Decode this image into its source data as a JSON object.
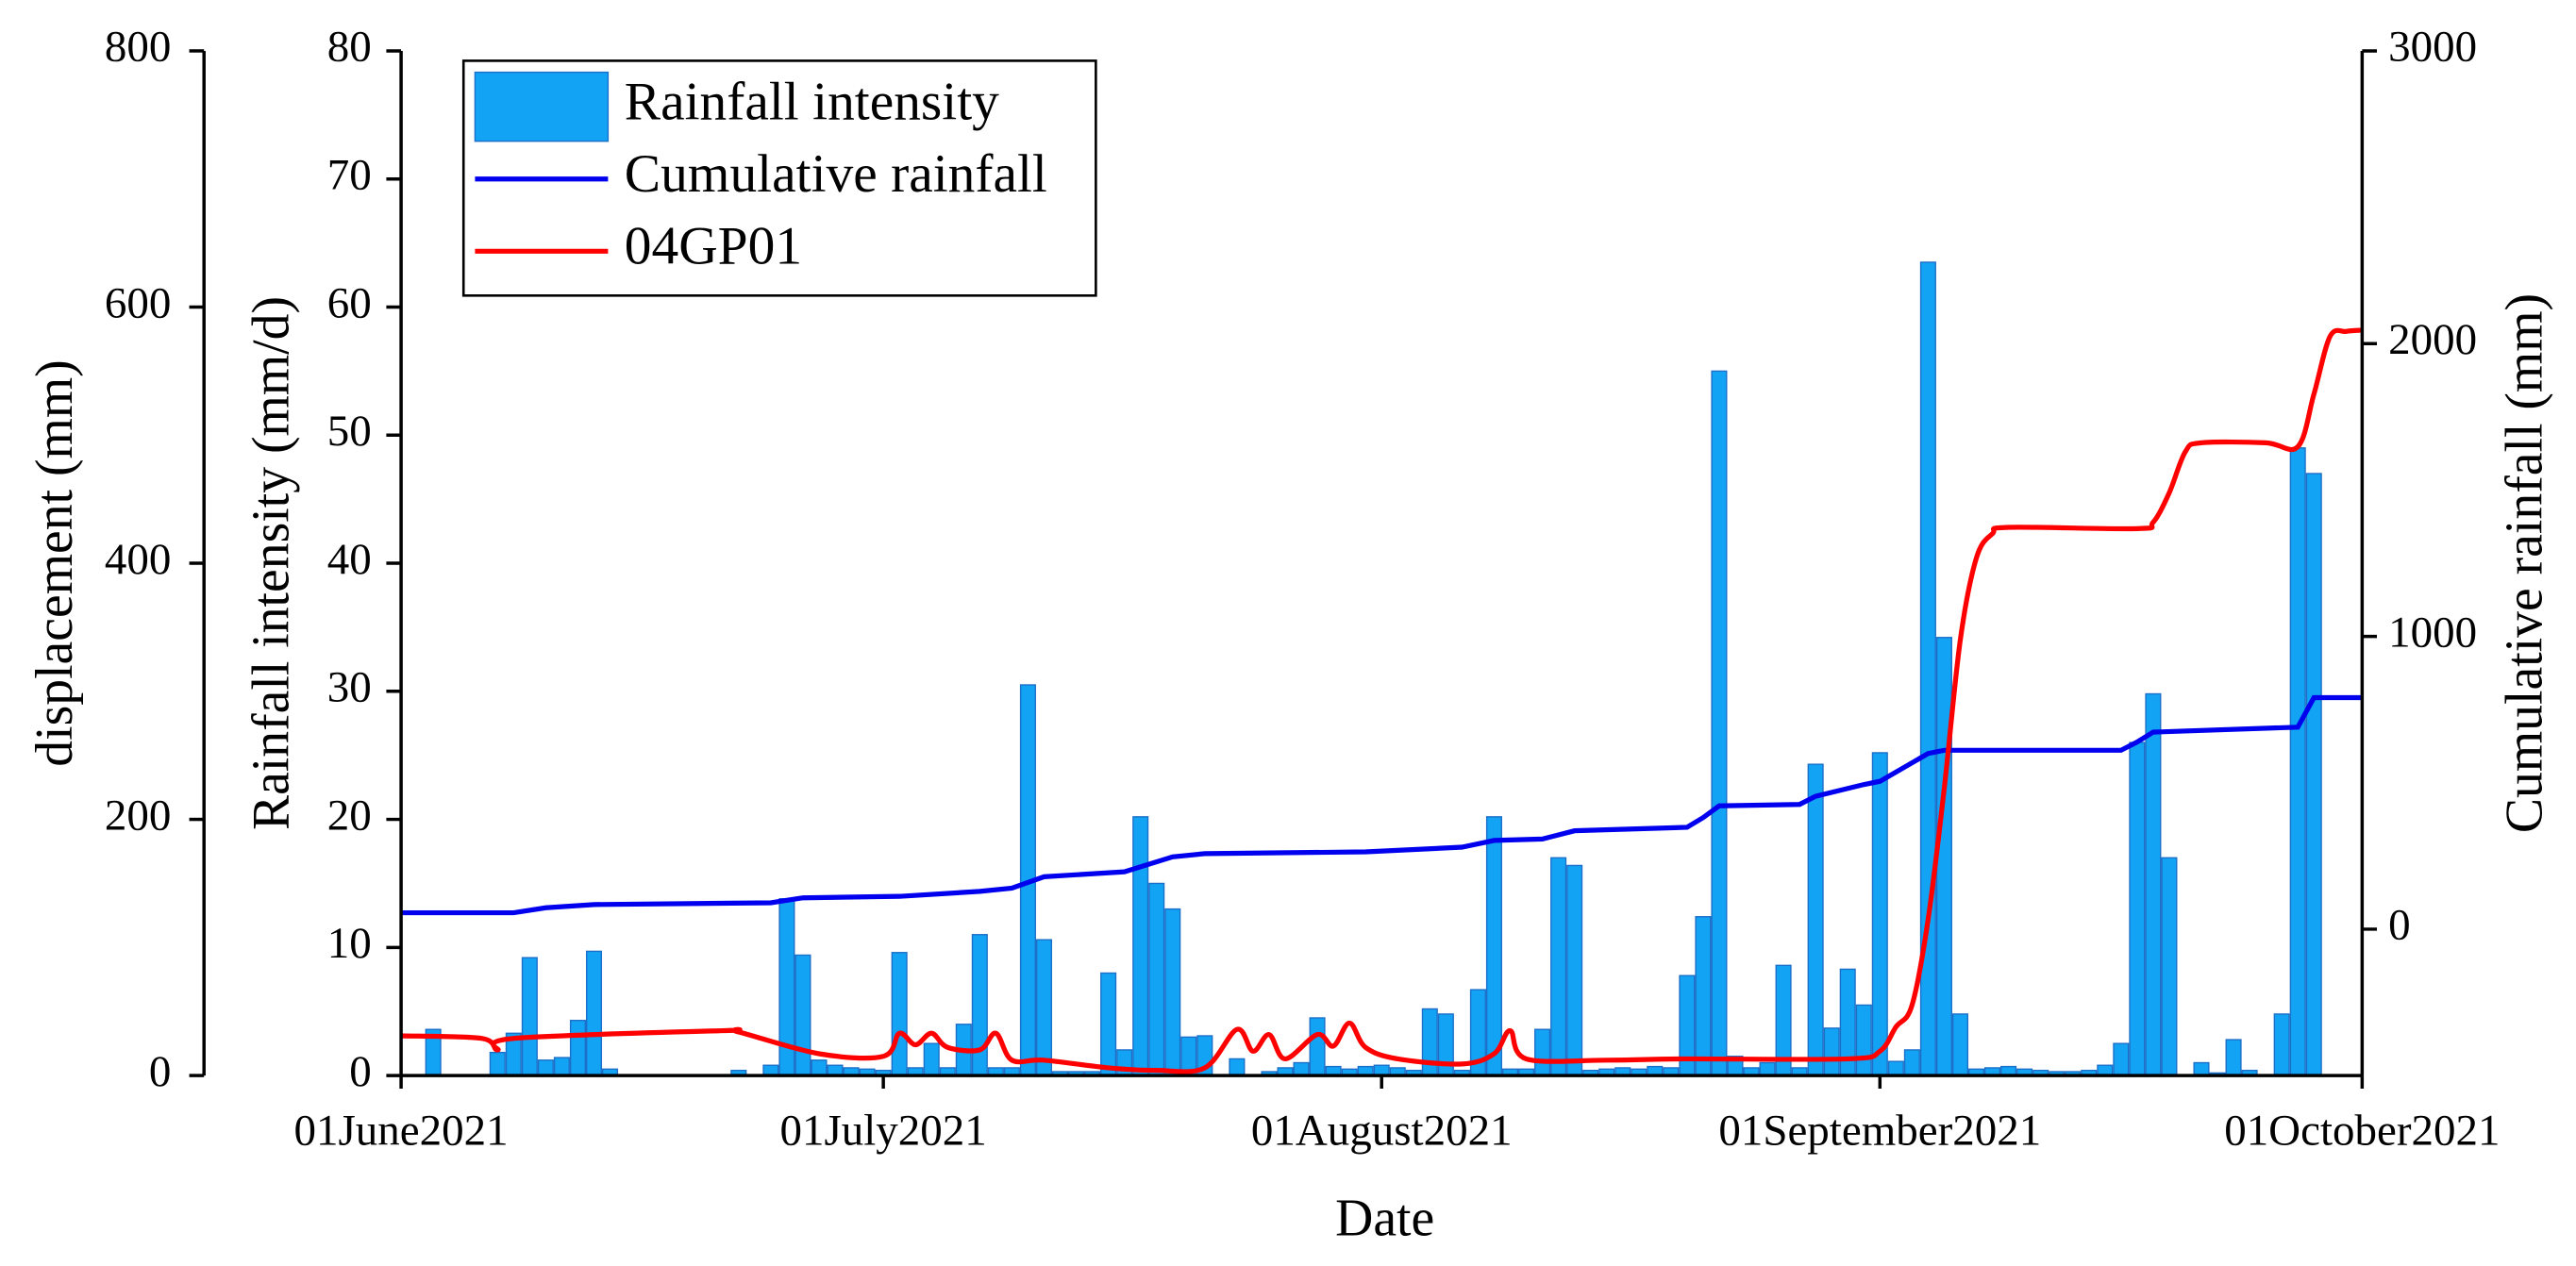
{
  "chart_data": {
    "type": "combo",
    "xlabel": "Date",
    "ylabel": "Rainfall intensity (mm/d)",
    "y2label": "Cumulative rainfall (mm)",
    "y3label": "displacement (mm)",
    "xlim": [
      "2021-06-01",
      "2021-10-01"
    ],
    "xticks": [
      {
        "value": "2021-06-01",
        "label": "01June2021"
      },
      {
        "value": "2021-07-01",
        "label": "01July2021"
      },
      {
        "value": "2021-08-01",
        "label": "01August2021"
      },
      {
        "value": "2021-09-01",
        "label": "01September2021"
      },
      {
        "value": "2021-10-01",
        "label": "01October2021"
      }
    ],
    "ylim": [
      0,
      80
    ],
    "yticks": [
      0,
      10,
      20,
      30,
      40,
      50,
      60,
      70,
      80
    ],
    "y2lim": [
      -500,
      3000
    ],
    "y2ticks": [
      0,
      1000,
      2000,
      3000
    ],
    "y3lim": [
      0,
      800
    ],
    "y3ticks": [
      0,
      200,
      400,
      600,
      800
    ],
    "legend": "upper left",
    "series": [
      {
        "name": "Rainfall intensity",
        "type": "bar",
        "axis": "y",
        "color": "#12a3f5",
        "x": [
          "2021-06-03",
          "2021-06-07",
          "2021-06-08",
          "2021-06-09",
          "2021-06-10",
          "2021-06-11",
          "2021-06-12",
          "2021-06-13",
          "2021-06-14",
          "2021-06-22",
          "2021-06-24",
          "2021-06-25",
          "2021-06-26",
          "2021-06-27",
          "2021-06-28",
          "2021-06-29",
          "2021-06-30",
          "2021-07-01",
          "2021-07-02",
          "2021-07-03",
          "2021-07-04",
          "2021-07-05",
          "2021-07-06",
          "2021-07-07",
          "2021-07-08",
          "2021-07-09",
          "2021-07-10",
          "2021-07-11",
          "2021-07-12",
          "2021-07-13",
          "2021-07-14",
          "2021-07-15",
          "2021-07-16",
          "2021-07-17",
          "2021-07-18",
          "2021-07-19",
          "2021-07-20",
          "2021-07-21",
          "2021-07-23",
          "2021-07-25",
          "2021-07-26",
          "2021-07-27",
          "2021-07-28",
          "2021-07-29",
          "2021-07-30",
          "2021-07-31",
          "2021-08-01",
          "2021-08-02",
          "2021-08-03",
          "2021-08-04",
          "2021-08-05",
          "2021-08-06",
          "2021-08-07",
          "2021-08-08",
          "2021-08-09",
          "2021-08-10",
          "2021-08-11",
          "2021-08-12",
          "2021-08-13",
          "2021-08-14",
          "2021-08-15",
          "2021-08-16",
          "2021-08-17",
          "2021-08-18",
          "2021-08-19",
          "2021-08-20",
          "2021-08-21",
          "2021-08-22",
          "2021-08-23",
          "2021-08-24",
          "2021-08-25",
          "2021-08-26",
          "2021-08-27",
          "2021-08-28",
          "2021-08-29",
          "2021-08-30",
          "2021-08-31",
          "2021-09-01",
          "2021-09-02",
          "2021-09-03",
          "2021-09-04",
          "2021-09-05",
          "2021-09-06",
          "2021-09-07",
          "2021-09-08",
          "2021-09-09",
          "2021-09-10",
          "2021-09-11",
          "2021-09-12",
          "2021-09-13",
          "2021-09-14",
          "2021-09-15",
          "2021-09-16",
          "2021-09-17",
          "2021-09-18",
          "2021-09-19",
          "2021-09-21",
          "2021-09-22",
          "2021-09-23",
          "2021-09-24",
          "2021-09-26",
          "2021-09-27",
          "2021-09-28"
        ],
        "values": [
          3.6,
          1.8,
          3.3,
          9.2,
          1.2,
          1.4,
          4.3,
          9.7,
          0.5,
          0.4,
          0.8,
          13.8,
          9.4,
          1.2,
          0.8,
          0.6,
          0.5,
          0.4,
          9.6,
          0.6,
          2.5,
          0.6,
          4,
          11,
          0.6,
          0.6,
          30.5,
          10.6,
          0.3,
          0.3,
          0.3,
          8,
          2,
          20.2,
          15,
          13,
          3,
          3.1,
          1.3,
          0.3,
          0.6,
          1,
          4.5,
          0.7,
          0.5,
          0.7,
          0.8,
          0.6,
          0.4,
          5.2,
          4.8,
          0.4,
          6.7,
          20.2,
          0.5,
          0.5,
          3.6,
          17,
          16.4,
          0.4,
          0.5,
          0.6,
          0.5,
          0.7,
          0.6,
          7.8,
          12.4,
          55,
          1.5,
          0.6,
          1,
          8.6,
          0.6,
          24.3,
          3.7,
          8.3,
          5.5,
          25.2,
          1.1,
          2,
          63.5,
          34.2,
          4.8,
          0.5,
          0.6,
          0.7,
          0.5,
          0.4,
          0.3,
          0.3,
          0.4,
          0.8,
          2.5,
          26,
          29.8,
          17,
          1,
          0.2,
          2.8,
          0.4,
          4.8,
          49,
          47
        ]
      },
      {
        "name": "Cumulative rainfall",
        "type": "line",
        "axis": "y2",
        "color": "#0000ee",
        "x": [
          "2021-06-01",
          "2021-06-08",
          "2021-06-10",
          "2021-06-13",
          "2021-06-24",
          "2021-06-26",
          "2021-07-02",
          "2021-07-07",
          "2021-07-09",
          "2021-07-11",
          "2021-07-16",
          "2021-07-19",
          "2021-07-21",
          "2021-07-31",
          "2021-08-06",
          "2021-08-08",
          "2021-08-11",
          "2021-08-13",
          "2021-08-20",
          "2021-08-21",
          "2021-08-22",
          "2021-08-27",
          "2021-08-28",
          "2021-08-31",
          "2021-09-01",
          "2021-09-04",
          "2021-09-05",
          "2021-09-16",
          "2021-09-17",
          "2021-09-18",
          "2021-09-27",
          "2021-09-28",
          "2021-10-01"
        ],
        "values": [
          56,
          56,
          73,
          84,
          90,
          107,
          112,
          129,
          140,
          179,
          196,
          247,
          258,
          264,
          280,
          303,
          308,
          336,
          348,
          381,
          421,
          426,
          454,
          494,
          505,
          600,
          611,
          611,
          639,
          673,
          690,
          791,
          791
        ]
      },
      {
        "name": "04GP01",
        "type": "line",
        "axis": "y3",
        "color": "#ff0000",
        "x": [
          "2021-06-01",
          "2021-06-06",
          "2021-06-07",
          "2021-06-08",
          "2021-06-21",
          "2021-06-22",
          "2021-06-27",
          "2021-07-01",
          "2021-07-02",
          "2021-07-03",
          "2021-07-04",
          "2021-07-05",
          "2021-07-07",
          "2021-07-08",
          "2021-07-09",
          "2021-07-11",
          "2021-07-15",
          "2021-07-18",
          "2021-07-21",
          "2021-07-23",
          "2021-07-24",
          "2021-07-25",
          "2021-07-26",
          "2021-07-28",
          "2021-07-29",
          "2021-07-30",
          "2021-07-31",
          "2021-08-02",
          "2021-08-06",
          "2021-08-08",
          "2021-08-09",
          "2021-08-10",
          "2021-08-15",
          "2021-08-20",
          "2021-08-30",
          "2021-09-01",
          "2021-09-02",
          "2021-09-03",
          "2021-09-04",
          "2021-09-05",
          "2021-09-06",
          "2021-09-07",
          "2021-09-08",
          "2021-09-09",
          "2021-09-17",
          "2021-09-18",
          "2021-09-19",
          "2021-09-20",
          "2021-09-21",
          "2021-09-25",
          "2021-09-27",
          "2021-09-28",
          "2021-09-29",
          "2021-09-30",
          "2021-10-01"
        ],
        "values": [
          31,
          29,
          20,
          29,
          35,
          34,
          17,
          15,
          33,
          24,
          33,
          22,
          20,
          33,
          12,
          12,
          6,
          4,
          6,
          36,
          19,
          32,
          13,
          32,
          23,
          41,
          22,
          13,
          9,
          17,
          35,
          13,
          12,
          13,
          13,
          19,
          38,
          55,
          122,
          224,
          340,
          404,
          423,
          428,
          427,
          432,
          455,
          487,
          494,
          494,
          491,
          532,
          577,
          581,
          582
        ]
      }
    ]
  }
}
